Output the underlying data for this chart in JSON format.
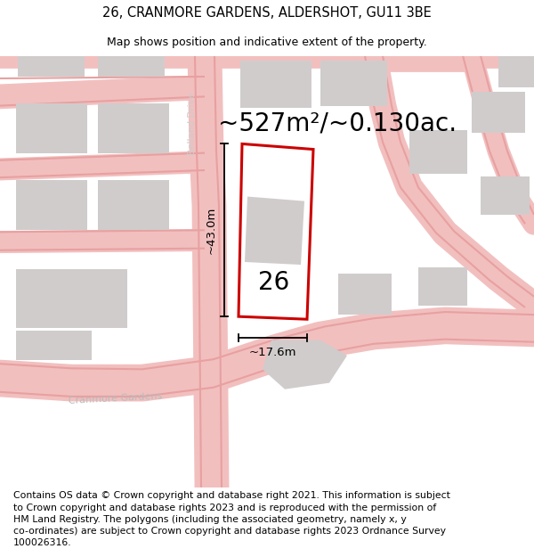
{
  "title": "26, CRANMORE GARDENS, ALDERSHOT, GU11 3BE",
  "subtitle": "Map shows position and indicative extent of the property.",
  "area_text": "~527m²/~0.130ac.",
  "dim_vertical": "~43.0m",
  "dim_horizontal": "~17.6m",
  "label_number": "26",
  "footer_line1": "Contains OS data © Crown copyright and database right 2021. This information is subject",
  "footer_line2": "to Crown copyright and database rights 2023 and is reproduced with the permission of",
  "footer_line3": "HM Land Registry. The polygons (including the associated geometry, namely x, y",
  "footer_line4": "co-ordinates) are subject to Crown copyright and database rights 2023 Ordnance Survey",
  "footer_line5": "100026316.",
  "background_color": "#ffffff",
  "map_bg": "#ffffff",
  "road_color": "#f2bfbf",
  "road_edge_color": "#e8a0a0",
  "building_color": "#d0cccc",
  "plot_outline_color": "#cc0000",
  "title_fontsize": 10.5,
  "subtitle_fontsize": 9,
  "area_fontsize": 20,
  "dim_fontsize": 9.5,
  "label_fontsize": 20,
  "footer_fontsize": 7.8,
  "belland_drive_color": "#cccccc",
  "cranmore_gardens_color": "#bbbbbb"
}
